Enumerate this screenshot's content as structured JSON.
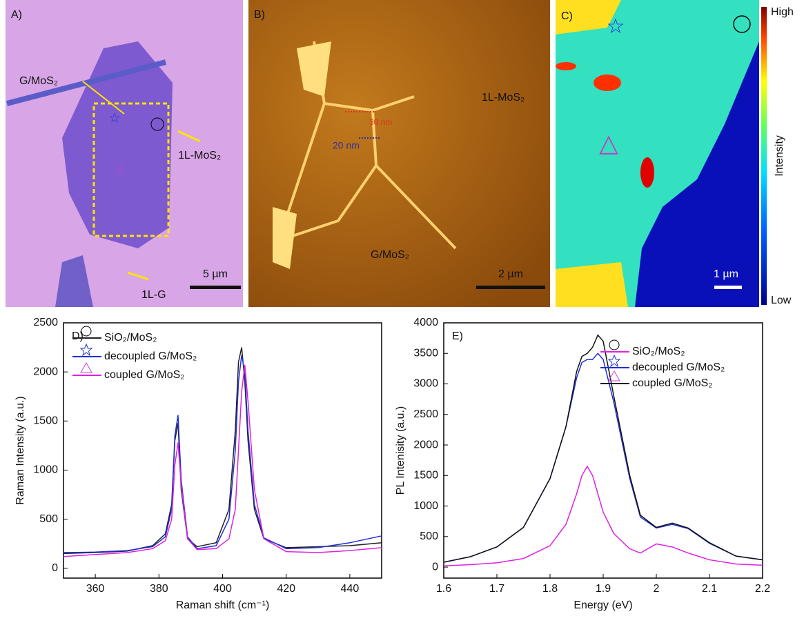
{
  "panels": {
    "a": {
      "label": "A)",
      "g_mos2": "G/MoS₂",
      "mos2": "1L-MoS₂",
      "scale": "5 µm",
      "g": "1L-G"
    },
    "b": {
      "label": "B)",
      "mos2": "1L-MoS₂",
      "h1": "30 nm",
      "h2": "20 nm",
      "g_mos2": "G/MoS₂",
      "scale": "2 µm"
    },
    "c": {
      "label": "C)",
      "scale": "1 µm",
      "high": "High",
      "mid": "Intensity",
      "low": "Low"
    }
  },
  "chart_data": [
    {
      "type": "line",
      "title": "D)",
      "x_label": "Raman shift (cm⁻¹)",
      "y_label": "Raman Intensity (a.u.)",
      "x": [
        350,
        360,
        370,
        378,
        382,
        384,
        385,
        386,
        387,
        389,
        392,
        398,
        402,
        404,
        405,
        406,
        407,
        408,
        410,
        413,
        420,
        430,
        440,
        450
      ],
      "series": [
        {
          "name": "SiO₂/MoS₂",
          "color": "#222222",
          "values": [
            150,
            160,
            175,
            230,
            350,
            650,
            1300,
            1480,
            800,
            300,
            220,
            260,
            600,
            1400,
            2100,
            2250,
            1900,
            1300,
            600,
            300,
            210,
            220,
            230,
            260
          ]
        },
        {
          "name": "decoupled G/MoS₂",
          "color": "#1f2fd6",
          "values": [
            160,
            165,
            180,
            220,
            320,
            600,
            1350,
            1560,
            900,
            320,
            200,
            230,
            500,
            1200,
            1900,
            2170,
            2000,
            1400,
            650,
            310,
            200,
            210,
            260,
            330
          ]
        },
        {
          "name": "coupled G/MoS₂",
          "color": "#e020e0",
          "values": [
            120,
            140,
            160,
            200,
            280,
            500,
            1050,
            1280,
            850,
            300,
            190,
            200,
            300,
            600,
            1200,
            1800,
            2070,
            1700,
            800,
            300,
            170,
            160,
            180,
            210
          ]
        }
      ],
      "xlim": [
        350,
        450
      ],
      "xticks": [
        360,
        380,
        400,
        420,
        440
      ],
      "ylim": [
        -100,
        2500
      ],
      "yticks": [
        0,
        500,
        1000,
        1500,
        2000,
        2500
      ]
    },
    {
      "type": "line",
      "title": "E)",
      "x_label": "Energy (eV)",
      "y_label": "PL Intenisity (a.u.)",
      "x": [
        1.6,
        1.65,
        1.7,
        1.75,
        1.8,
        1.83,
        1.85,
        1.86,
        1.87,
        1.88,
        1.89,
        1.9,
        1.92,
        1.95,
        1.97,
        2.0,
        2.03,
        2.06,
        2.1,
        2.15,
        2.2
      ],
      "series": [
        {
          "name": "SiO₂/MoS₂",
          "color": "#e020e0",
          "values": [
            20,
            40,
            70,
            140,
            350,
            700,
            1200,
            1500,
            1650,
            1500,
            1200,
            900,
            550,
            300,
            230,
            380,
            330,
            230,
            120,
            50,
            30
          ]
        },
        {
          "name": "decoupled G/MoS₂",
          "color": "#1f2fd6",
          "values": [
            80,
            170,
            330,
            650,
            1450,
            2300,
            3100,
            3350,
            3400,
            3400,
            3500,
            3400,
            2700,
            1450,
            820,
            640,
            700,
            630,
            390,
            180,
            120
          ]
        },
        {
          "name": "coupled G/MoS₂",
          "color": "#111111",
          "values": [
            80,
            170,
            330,
            650,
            1450,
            2300,
            3200,
            3450,
            3500,
            3600,
            3800,
            3700,
            2800,
            1500,
            850,
            650,
            720,
            640,
            400,
            180,
            120
          ]
        }
      ],
      "xlim": [
        1.6,
        2.2
      ],
      "xticks": [
        1.6,
        1.7,
        1.8,
        1.9,
        2.0,
        2.1,
        2.2
      ],
      "ylim": [
        -180,
        4000
      ],
      "yticks": [
        0,
        500,
        1000,
        1500,
        2000,
        2500,
        3000,
        3500,
        4000
      ]
    }
  ]
}
